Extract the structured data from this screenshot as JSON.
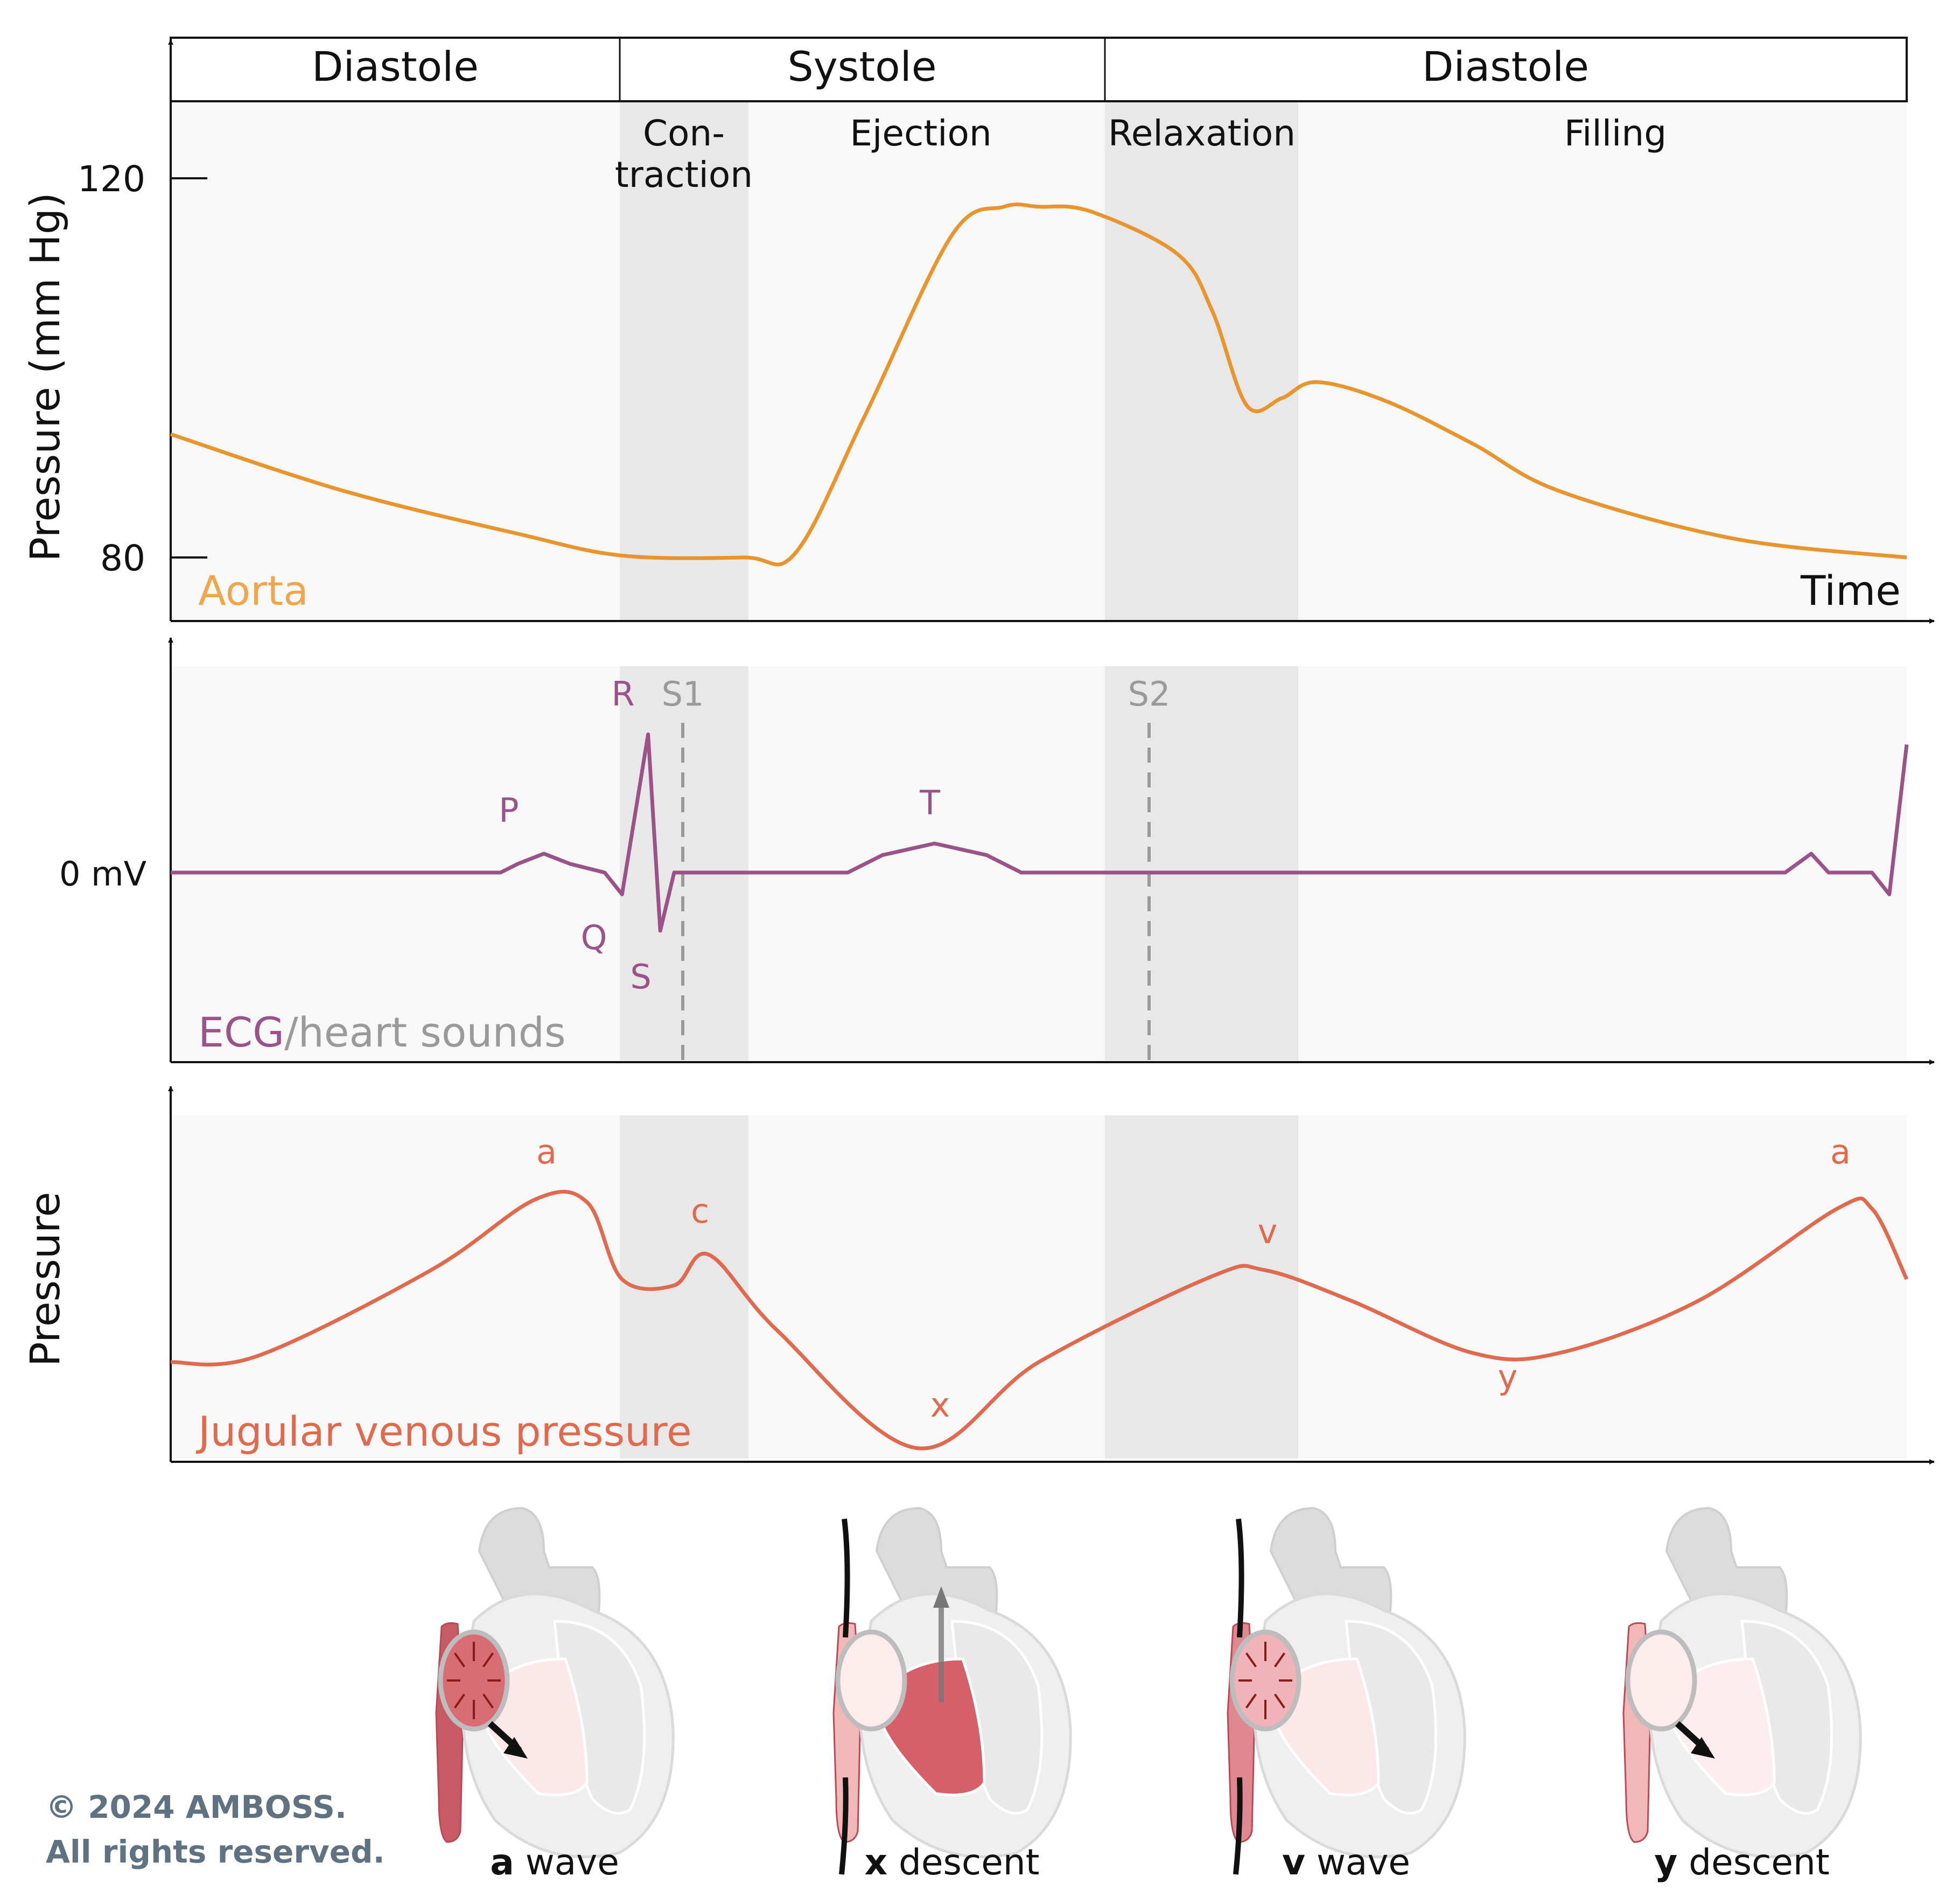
{
  "colors": {
    "aorta": "#E8952E",
    "aorta_label": "#F0A64A",
    "ecg": "#9B5288",
    "heart_sounds": "#9A9A9A",
    "jvp": "#E06A4E",
    "panel_bg": "#F8F8F8",
    "band": "#E8E8E8",
    "copyright": "#5F7282"
  },
  "header": {
    "phases": [
      "Diastole",
      "Systole",
      "Diastole"
    ],
    "subphases": [
      "Con-",
      "traction",
      "Ejection",
      "Relaxation",
      "Filling"
    ]
  },
  "chart_data": [
    {
      "type": "line",
      "title": "Aorta",
      "ylabel": "Pressure (mm Hg)",
      "xlabel": "Time",
      "yticks": [
        "120",
        "80"
      ],
      "ylim": [
        73,
        135
      ],
      "series": [
        {
          "name": "Aorta",
          "x": [
            0,
            0.1,
            0.2,
            0.26,
            0.33,
            0.36,
            0.4,
            0.45,
            0.48,
            0.5,
            0.53,
            0.58,
            0.6,
            0.62,
            0.64,
            0.66,
            0.7,
            0.75,
            0.8,
            0.9,
            1.0
          ],
          "y": [
            93,
            87,
            82.5,
            80.2,
            80,
            80.5,
            95,
            114,
            117,
            117,
            116.5,
            112,
            106,
            96,
            96.8,
            98.5,
            96.5,
            92,
            87,
            82,
            80
          ]
        }
      ]
    },
    {
      "type": "line",
      "title": "ECG/heart sounds",
      "ylabel": "0 mV",
      "annotations": [
        "P",
        "Q",
        "R",
        "S",
        "T",
        "S1",
        "S2"
      ],
      "series": [
        {
          "name": "ECG",
          "x": [
            0,
            0.19,
            0.2,
            0.215,
            0.23,
            0.25,
            0.26,
            0.275,
            0.282,
            0.29,
            0.39,
            0.41,
            0.44,
            0.47,
            0.49,
            0.93,
            0.945,
            0.955,
            0.98,
            0.99,
            1.0
          ],
          "y": [
            0,
            0,
            0.06,
            0.13,
            0.06,
            0,
            -0.15,
            0.95,
            -0.4,
            0,
            0,
            0.12,
            0.2,
            0.12,
            0,
            0,
            0.13,
            0,
            0,
            -0.15,
            0.88
          ]
        }
      ]
    },
    {
      "type": "line",
      "title": "Jugular venous pressure",
      "ylabel": "Pressure",
      "annotations": [
        "a",
        "c",
        "x",
        "v",
        "y",
        "a"
      ],
      "series": [
        {
          "name": "JVP",
          "x": [
            0,
            0.05,
            0.15,
            0.21,
            0.24,
            0.26,
            0.29,
            0.31,
            0.35,
            0.43,
            0.5,
            0.6,
            0.63,
            0.68,
            0.75,
            0.8,
            0.88,
            0.96,
            0.98,
            1.0
          ],
          "y": [
            0.3,
            0.32,
            0.6,
            0.83,
            0.82,
            0.57,
            0.55,
            0.65,
            0.4,
            0.02,
            0.3,
            0.58,
            0.6,
            0.5,
            0.33,
            0.33,
            0.5,
            0.8,
            0.8,
            0.57
          ]
        }
      ]
    }
  ],
  "labels": {
    "y120": "120",
    "y80": "80",
    "ylabel1": "Pressure (mm Hg)",
    "aorta": "Aorta",
    "time": "Time",
    "zero_mv": "0 mV",
    "ecg": "ECG",
    "heart_sounds": "/heart sounds",
    "P": "P",
    "Q": "Q",
    "R": "R",
    "S": "S",
    "T": "T",
    "S1": "S1",
    "S2": "S2",
    "ylabel3": "Pressure",
    "jvp": "Jugular venous pressure",
    "a1": "a",
    "c": "c",
    "x": "x",
    "v": "v",
    "y": "y",
    "a2": "a"
  },
  "hearts": [
    {
      "letter": "a",
      "word": "wave"
    },
    {
      "letter": "x",
      "word": "descent"
    },
    {
      "letter": "v",
      "word": "wave"
    },
    {
      "letter": "y",
      "word": "descent"
    }
  ],
  "copyright": [
    "© 2024 AMBOSS.",
    "All rights reserved."
  ]
}
